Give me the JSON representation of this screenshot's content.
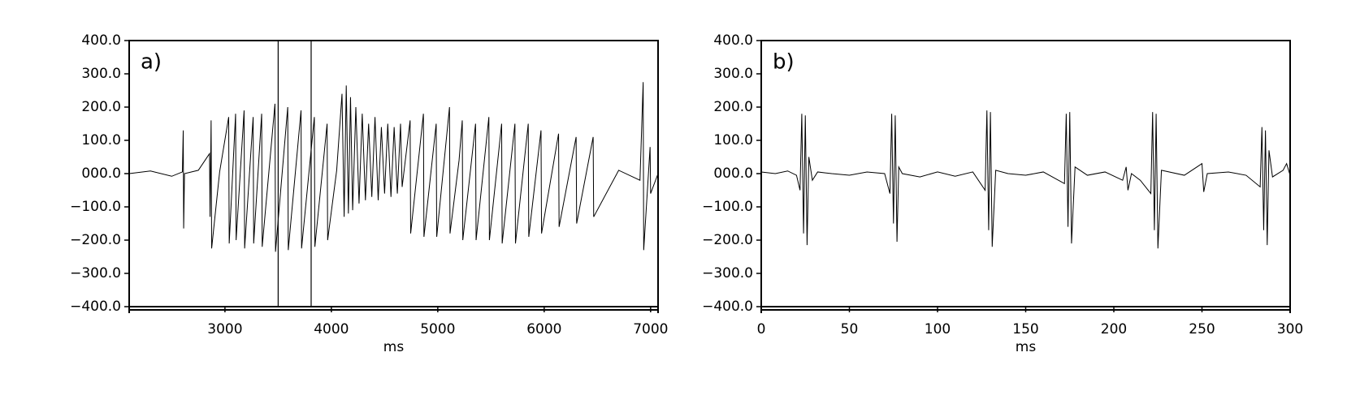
{
  "chart_data": [
    {
      "type": "line",
      "panel_label": "a)",
      "xlabel": "ms",
      "color": "#000000",
      "xlim": [
        2100,
        7070
      ],
      "xticks": [
        3000,
        4000,
        5000,
        6000,
        7000
      ],
      "ylim": [
        -400,
        400
      ],
      "yticks": [
        {
          "value": -400,
          "label": "−400.0"
        },
        {
          "value": -300,
          "label": "−300.0"
        },
        {
          "value": -200,
          "label": "−200.0"
        },
        {
          "value": -100,
          "label": "−100.0"
        },
        {
          "value": 0,
          "label": "000.0"
        },
        {
          "value": 100,
          "label": "100.0"
        },
        {
          "value": 200,
          "label": "200.0"
        },
        {
          "value": 300,
          "label": "300.0"
        },
        {
          "value": 400,
          "label": "400.0"
        }
      ],
      "vlines": [
        3500,
        3810
      ],
      "x": [
        2100,
        2300,
        2500,
        2600,
        2608,
        2612,
        2620,
        2750,
        2855,
        2860,
        2870,
        2875,
        2950,
        3035,
        3040,
        3100,
        3105,
        3180,
        3185,
        3265,
        3270,
        3345,
        3350,
        3470,
        3475,
        3590,
        3595,
        3715,
        3720,
        3840,
        3845,
        3960,
        3965,
        4050,
        4100,
        4120,
        4140,
        4160,
        4180,
        4200,
        4230,
        4260,
        4290,
        4320,
        4350,
        4380,
        4410,
        4440,
        4470,
        4500,
        4530,
        4560,
        4590,
        4620,
        4650,
        4665,
        4680,
        4740,
        4745,
        4865,
        4870,
        4985,
        4990,
        5110,
        5115,
        5200,
        5230,
        5235,
        5355,
        5360,
        5480,
        5485,
        5600,
        5605,
        5725,
        5730,
        5850,
        5855,
        5970,
        5975,
        6135,
        6140,
        6300,
        6305,
        6460,
        6465,
        6700,
        6900,
        6930,
        6935,
        6995,
        7000,
        7070
      ],
      "values": [
        0,
        8,
        -8,
        5,
        130,
        -165,
        0,
        10,
        60,
        -130,
        160,
        -225,
        5,
        170,
        -210,
        180,
        -200,
        190,
        -225,
        170,
        -210,
        180,
        -220,
        210,
        -235,
        200,
        -230,
        190,
        -225,
        170,
        -220,
        150,
        -200,
        10,
        240,
        -130,
        265,
        -120,
        230,
        -110,
        200,
        -90,
        180,
        -80,
        150,
        -70,
        170,
        -80,
        140,
        -60,
        150,
        -70,
        140,
        -60,
        150,
        -40,
        0,
        160,
        -180,
        180,
        -190,
        150,
        -190,
        200,
        -180,
        40,
        160,
        -200,
        150,
        -200,
        170,
        -200,
        150,
        -210,
        150,
        -210,
        150,
        -190,
        130,
        -180,
        120,
        -160,
        110,
        -150,
        110,
        -130,
        10,
        -20,
        275,
        -230,
        80,
        -60,
        0
      ]
    },
    {
      "type": "line",
      "panel_label": "b)",
      "xlabel": "ms",
      "color": "#000000",
      "xlim": [
        0,
        300
      ],
      "xticks": [
        0,
        50,
        100,
        150,
        200,
        250,
        300
      ],
      "ylim": [
        -400,
        400
      ],
      "yticks": [
        {
          "value": -400,
          "label": "−400.0"
        },
        {
          "value": -300,
          "label": "−300.0"
        },
        {
          "value": -200,
          "label": "−200.0"
        },
        {
          "value": -100,
          "label": "−100.0"
        },
        {
          "value": 0,
          "label": "000.0"
        },
        {
          "value": 100,
          "label": "100.0"
        },
        {
          "value": 200,
          "label": "200.0"
        },
        {
          "value": 300,
          "label": "300.0"
        },
        {
          "value": 400,
          "label": "400.0"
        }
      ],
      "x": [
        0,
        8,
        15,
        20,
        22,
        23,
        24,
        25,
        26,
        27,
        29,
        32,
        40,
        50,
        60,
        70,
        73,
        74,
        75,
        76,
        77,
        78,
        80,
        90,
        100,
        110,
        120,
        127,
        128,
        129,
        130,
        131,
        133,
        140,
        150,
        160,
        172,
        173,
        174,
        175,
        176,
        178,
        185,
        195,
        205,
        207,
        208,
        210,
        215,
        221,
        222,
        223,
        224,
        225,
        227,
        240,
        250,
        251,
        253,
        265,
        275,
        283,
        284,
        285,
        286,
        287,
        288,
        290,
        296,
        298,
        300
      ],
      "values": [
        5,
        0,
        8,
        -5,
        -50,
        180,
        -180,
        175,
        -215,
        50,
        -20,
        5,
        0,
        -5,
        5,
        0,
        -60,
        180,
        -150,
        175,
        -205,
        20,
        0,
        -10,
        5,
        -8,
        5,
        -50,
        190,
        -170,
        185,
        -220,
        10,
        0,
        -5,
        5,
        -30,
        180,
        -160,
        185,
        -210,
        20,
        -5,
        5,
        -20,
        20,
        -50,
        0,
        -20,
        -60,
        185,
        -170,
        180,
        -225,
        10,
        -5,
        30,
        -55,
        0,
        5,
        -5,
        -40,
        140,
        -170,
        130,
        -215,
        70,
        -10,
        10,
        30,
        -5
      ]
    }
  ]
}
